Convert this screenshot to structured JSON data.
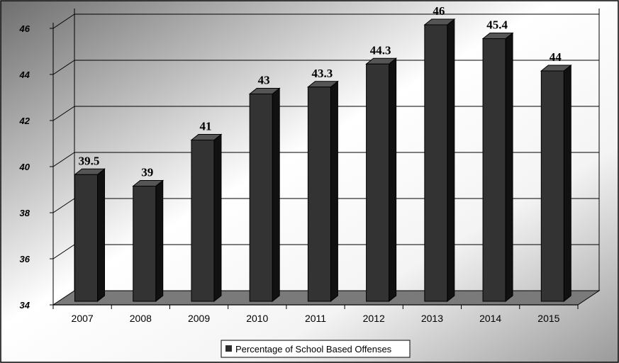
{
  "chart_data": {
    "type": "bar",
    "categories": [
      "2007",
      "2008",
      "2009",
      "2010",
      "2011",
      "2012",
      "2013",
      "2014",
      "2015"
    ],
    "series": [
      {
        "name": "Percentage of School Based Offenses",
        "values": [
          39.5,
          39,
          41,
          43,
          43.3,
          44.3,
          46,
          45.4,
          44
        ]
      }
    ],
    "data_labels": [
      "39.5",
      "39",
      "41",
      "43",
      "43.3",
      "44.3",
      "46",
      "45.4",
      "44"
    ],
    "y_ticks": [
      "34",
      "36",
      "38",
      "40",
      "42",
      "44",
      "46"
    ],
    "ylim": [
      34,
      46
    ],
    "title": "",
    "xlabel": "",
    "ylabel": "",
    "grid": true,
    "legend_position": "bottom",
    "three_d": true,
    "colors": {
      "bar_front": "#333333",
      "bar_side": "#111111",
      "bar_top": "#555555",
      "floor": "#7a7a7a",
      "grid": "#000000",
      "legend_swatch": "#2b2b2b"
    }
  },
  "legend": {
    "label": "Percentage of School Based Offenses"
  }
}
